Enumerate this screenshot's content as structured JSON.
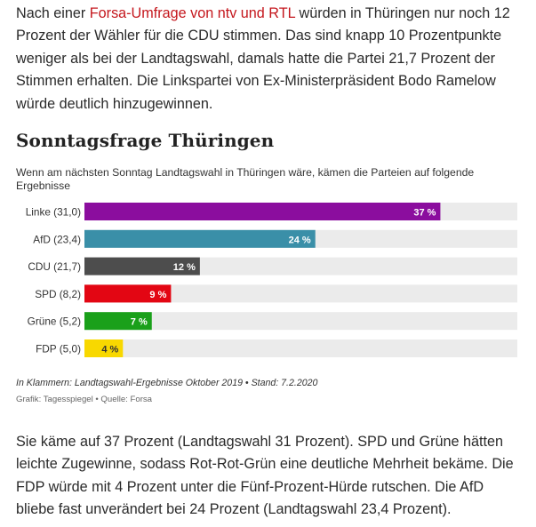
{
  "article": {
    "para1_before": "Nach einer ",
    "para1_link": "Forsa-Umfrage von ntv und RTL",
    "para1_after": " würden in Thüringen nur noch 12 Prozent der Wähler für die CDU stimmen. Das sind knapp 10 Prozentpunkte weniger als bei der Landtagswahl, damals hatte die Partei 21,7 Prozent der Stimmen erhalten. Die Linkspartei von Ex-Ministerpräsident Bodo Ramelow würde deutlich hinzugewinnen.",
    "para2": "Sie käme auf 37 Prozent (Landtagswahl 31 Prozent). SPD und Grüne hätten leichte Zugewinne, sodass Rot-Rot-Grün eine deutliche Mehrheit bekäme. Die FDP würde mit 4 Prozent unter die Fünf-Prozent-Hürde rutschen. Die AfD bliebe fast unverändert bei 24 Prozent (Landtagswahl 23,4 Prozent)."
  },
  "chart_data": {
    "type": "bar",
    "orientation": "horizontal",
    "title": "Sonntagsfrage Thüringen",
    "subtitle": "Wenn am nächsten Sonntag Landtagswahl in Thüringen wäre, kämen die Parteien auf folgende Ergebnisse",
    "categories": [
      "Linke (31,0)",
      "AfD (23,4)",
      "CDU (21,7)",
      "SPD (8,2)",
      "Grüne (5,2)",
      "FDP (5,0)"
    ],
    "values": [
      37,
      24,
      12,
      9,
      7,
      4
    ],
    "value_labels": [
      "37 %",
      "24 %",
      "12 %",
      "9 %",
      "7 %",
      "4 %"
    ],
    "colors": [
      "#8b0d9e",
      "#3a8fa8",
      "#4d4d4d",
      "#e30613",
      "#1aa01a",
      "#f8d800"
    ],
    "label_colors": [
      "#ffffff",
      "#ffffff",
      "#ffffff",
      "#ffffff",
      "#ffffff",
      "#333333"
    ],
    "track_color": "#ebebeb",
    "xlim": [
      0,
      45
    ],
    "note": "In Klammern: Landtagswahl-Ergebnisse Oktober 2019 • Stand: 7.2.2020",
    "source": "Grafik: Tagesspiegel • Quelle: Forsa"
  }
}
